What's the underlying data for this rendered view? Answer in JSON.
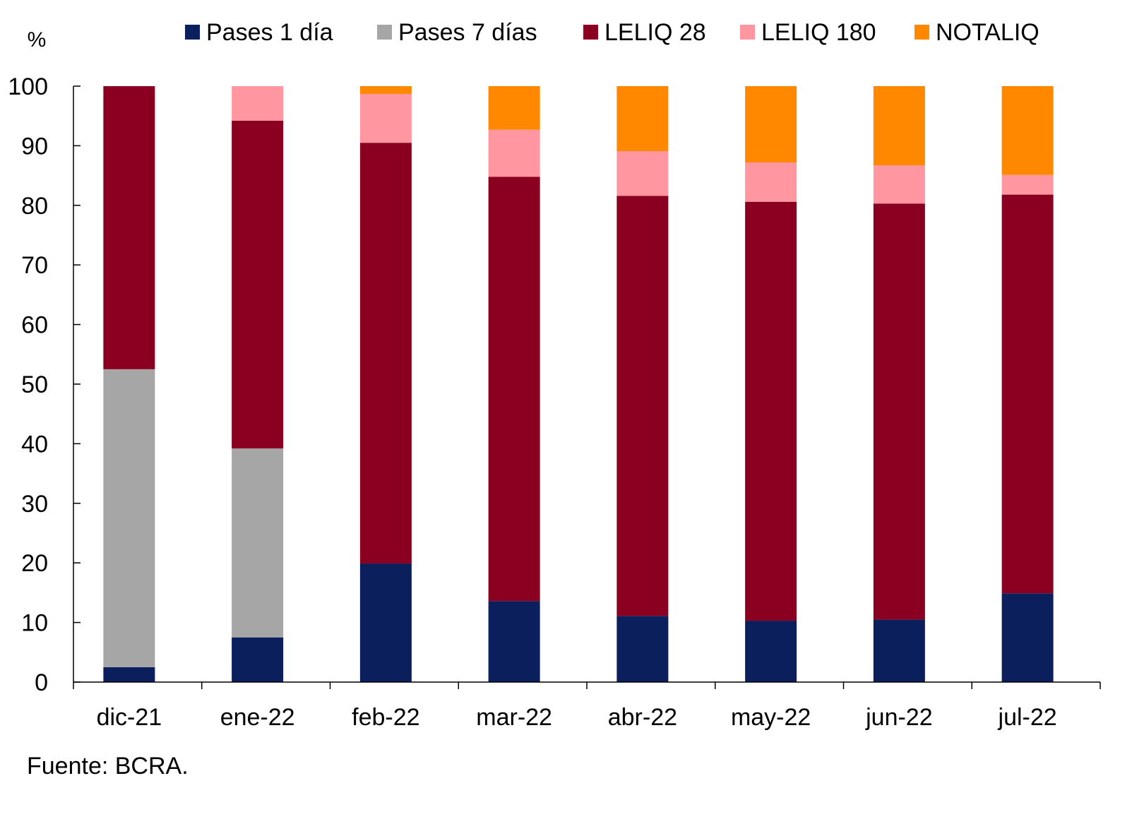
{
  "chart_data": {
    "type": "bar",
    "stacked": true,
    "ylabel": "%",
    "ylim": [
      0,
      100
    ],
    "yticks": [
      0,
      10,
      20,
      30,
      40,
      50,
      60,
      70,
      80,
      90,
      100
    ],
    "grid": false,
    "legend_position": "top",
    "categories": [
      "dic-21",
      "ene-22",
      "feb-22",
      "mar-22",
      "abr-22",
      "may-22",
      "jun-22",
      "jul-22"
    ],
    "series": [
      {
        "name": "Pases 1 día",
        "color": "#0a1f5c",
        "values": [
          2.5,
          7.5,
          19.9,
          13.6,
          11.1,
          10.3,
          10.5,
          14.9
        ]
      },
      {
        "name": "Pases 7 días",
        "color": "#a6a6a6",
        "values": [
          50.0,
          31.7,
          0,
          0,
          0,
          0,
          0,
          0
        ]
      },
      {
        "name": "LELIQ 28",
        "color": "#8b0020",
        "values": [
          47.5,
          55.0,
          70.6,
          71.2,
          70.5,
          70.3,
          69.8,
          66.9
        ]
      },
      {
        "name": "LELIQ 180",
        "color": "#ff96a0",
        "values": [
          0,
          5.8,
          8.2,
          7.9,
          7.5,
          6.6,
          6.4,
          3.3
        ]
      },
      {
        "name": "NOTALIQ",
        "color": "#ff8800",
        "values": [
          0,
          0,
          1.3,
          7.3,
          10.9,
          12.8,
          13.3,
          14.9
        ]
      }
    ],
    "source": "Fuente: BCRA."
  }
}
